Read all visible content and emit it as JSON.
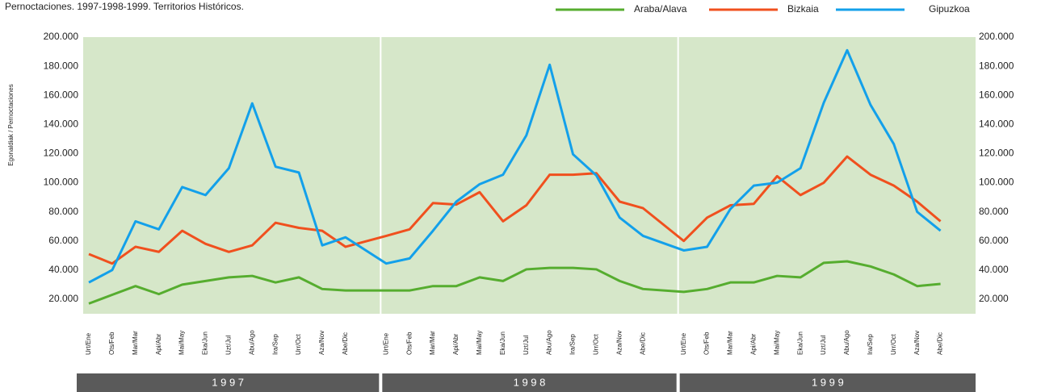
{
  "chart_data": {
    "type": "line",
    "title": "Pernoctaciones. 1997-1998-1999. Territorios Históricos.",
    "y_label": "Egonaldiak / Pernoctaciones",
    "years": [
      "1 9 9 7",
      "1 9 9 8",
      "1 9 9 9"
    ],
    "categories": [
      "Urt/Ene",
      "Ots/Feb",
      "Mar/Mar",
      "Api/Abr",
      "Mai/May",
      "Eka/Jun",
      "Uzt/Jul",
      "Abu/Ago",
      "Ira/Sep",
      "Urr/Oct",
      "Aza/Nov",
      "Abe/Dic",
      "Urt/Ene",
      "Ots/Feb",
      "Mar/Mar",
      "Api/Abr",
      "Mai/May",
      "Eka/Jun",
      "Uzt/Jul",
      "Abu/Ago",
      "Ira/Sep",
      "Urr/Oct",
      "Aza/Nov",
      "Abe/Dic",
      "Urt/Ene",
      "Ots/Feb",
      "Mar/Mar",
      "Api/Abr",
      "Mai/May",
      "Eka/Jun",
      "Uzt/Jul",
      "Abu/Ago",
      "Ira/Sep",
      "Urr/Oct",
      "Aza/Nov",
      "Abe/Dic"
    ],
    "series": [
      {
        "name": "Araba/Alava",
        "color": "#56ad2f",
        "values": [
          17000,
          23000,
          29000,
          23500,
          30000,
          32500,
          35000,
          36000,
          31500,
          35000,
          27000,
          26000,
          26000,
          26000,
          29000,
          29000,
          35000,
          32500,
          40500,
          41500,
          41500,
          40500,
          32500,
          27000,
          25000,
          27000,
          31500,
          31500,
          36000,
          35000,
          45000,
          46000,
          42500,
          37000,
          29000,
          30500
        ]
      },
      {
        "name": "Bizkaia",
        "color": "#f0501e",
        "values": [
          51000,
          44500,
          56000,
          52500,
          67000,
          58000,
          52500,
          57000,
          72500,
          69000,
          67000,
          56000,
          63500,
          68000,
          86000,
          85000,
          93500,
          73500,
          84500,
          105500,
          105500,
          106500,
          87000,
          82500,
          60000,
          76000,
          84500,
          85500,
          104500,
          91500,
          100000,
          118000,
          105500,
          98000,
          87000,
          73500
        ]
      },
      {
        "name": "Gipuzkoa",
        "color": "#13a0ea",
        "values": [
          31500,
          40000,
          73500,
          68000,
          97000,
          91500,
          110000,
          154500,
          111000,
          107000,
          57000,
          62500,
          44500,
          48000,
          67000,
          87000,
          99000,
          105500,
          132500,
          181000,
          119500,
          105000,
          76000,
          63500,
          53500,
          56000,
          82000,
          98000,
          100000,
          110000,
          155000,
          191000,
          153500,
          126500,
          80000,
          67000
        ]
      }
    ],
    "ylim": [
      10000,
      200000
    ],
    "yticks": [
      {
        "value": 20000,
        "label": "20.000"
      },
      {
        "value": 40000,
        "label": "40.000"
      },
      {
        "value": 60000,
        "label": "60.000"
      },
      {
        "value": 80000,
        "label": "80.000"
      },
      {
        "value": 100000,
        "label": "100.000"
      },
      {
        "value": 120000,
        "label": "120.000"
      },
      {
        "value": 140000,
        "label": "140.000"
      },
      {
        "value": 160000,
        "label": "160.000"
      },
      {
        "value": 180000,
        "label": "180.000"
      },
      {
        "value": 200000,
        "label": "200.000"
      }
    ],
    "grid": false
  }
}
